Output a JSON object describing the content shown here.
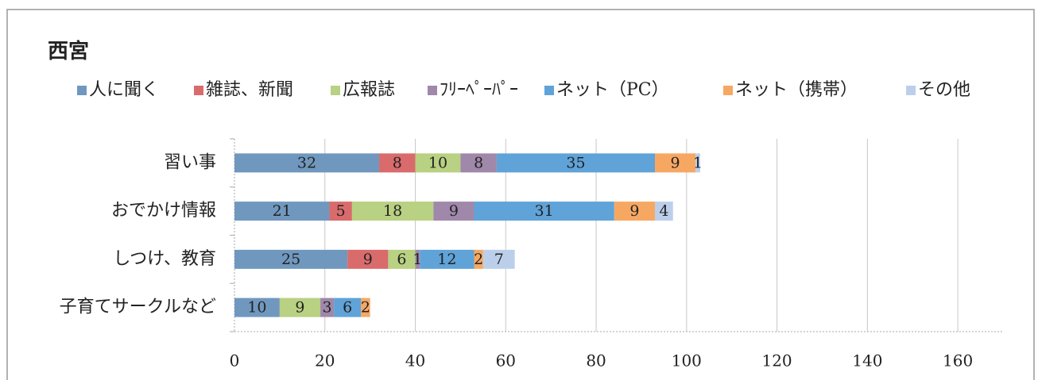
{
  "chart_data": {
    "type": "stacked-barh",
    "title": "西宮",
    "categories": [
      "習い事",
      "おでかけ情報",
      "しつけ、教育",
      "子育てサークルなど"
    ],
    "series": [
      {
        "name": "人に聞く",
        "color": "#7098bf",
        "values": [
          32,
          21,
          25,
          10
        ]
      },
      {
        "name": "雑誌、新聞",
        "color": "#d96b6c",
        "values": [
          8,
          5,
          9,
          null
        ]
      },
      {
        "name": "広報誌",
        "color": "#b8d182",
        "values": [
          10,
          18,
          6,
          9
        ]
      },
      {
        "name": "ﾌﾘｰﾍﾟｰﾊﾟｰ",
        "color": "#a088aa",
        "values": [
          8,
          9,
          1,
          3
        ]
      },
      {
        "name": "ネット（PC）",
        "color": "#5fa3d8",
        "values": [
          35,
          31,
          12,
          6
        ]
      },
      {
        "name": "ネット（携帯）",
        "color": "#f6a863",
        "values": [
          9,
          9,
          2,
          2
        ]
      },
      {
        "name": "その他",
        "color": "#bccfea",
        "values": [
          1,
          4,
          7,
          null
        ]
      }
    ],
    "xlim": [
      0,
      170
    ],
    "xticks": [
      0,
      20,
      40,
      60,
      80,
      100,
      120,
      140,
      160
    ],
    "grid": true,
    "legend": "top"
  }
}
